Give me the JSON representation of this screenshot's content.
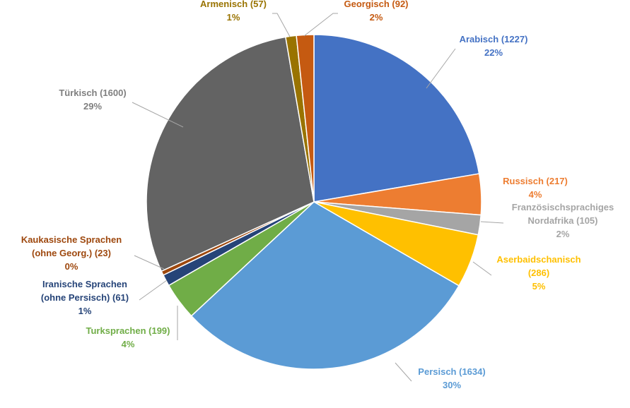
{
  "chart_data": {
    "type": "pie",
    "title": "",
    "slices": [
      {
        "label": "Arabisch",
        "value": 1227,
        "percent": "22%",
        "color": "#4472C4",
        "label_color": "#4472C4"
      },
      {
        "label": "Russisch",
        "value": 217,
        "percent": "4%",
        "color": "#ED7D31",
        "label_color": "#ED7D31"
      },
      {
        "label": "Französischsprachiges Nordafrika",
        "value": 105,
        "percent": "2%",
        "color": "#A5A5A5",
        "label_color": "#A5A5A5"
      },
      {
        "label": "Aserbaidschanisch",
        "value": 286,
        "percent": "5%",
        "color": "#FFC000",
        "label_color": "#FFC000"
      },
      {
        "label": "Persisch",
        "value": 1634,
        "percent": "30%",
        "color": "#5B9BD5",
        "label_color": "#5B9BD5"
      },
      {
        "label": "Turksprachen",
        "value": 199,
        "percent": "4%",
        "color": "#70AD47",
        "label_color": "#70AD47"
      },
      {
        "label": "Iranische Sprachen (ohne Persisch)",
        "value": 61,
        "percent": "1%",
        "color": "#264478",
        "label_color": "#264478"
      },
      {
        "label": "Kaukasische Sprachen (ohne Georg.)",
        "value": 23,
        "percent": "0%",
        "color": "#9E480E",
        "label_color": "#9E480E"
      },
      {
        "label": "Türkisch",
        "value": 1600,
        "percent": "29%",
        "color": "#636363",
        "label_color": "#7F7F7F"
      },
      {
        "label": "Armenisch",
        "value": 57,
        "percent": "1%",
        "color": "#997300",
        "label_color": "#997300"
      },
      {
        "label": "Georgisch",
        "value": 92,
        "percent": "2%",
        "color": "#C55A11",
        "label_color": "#C55A11"
      }
    ],
    "labels": [
      [
        "Arabisch (1227)",
        "22%"
      ],
      [
        "Russisch (217)",
        "4%"
      ],
      [
        "Französischsprachiges",
        "Nordafrika (105)",
        "2%"
      ],
      [
        "Aserbaidschanisch",
        "(286)",
        "5%"
      ],
      [
        "Persisch (1634)",
        "30%"
      ],
      [
        "Turksprachen (199)",
        "4%"
      ],
      [
        "Iranische Sprachen",
        "(ohne Persisch) (61)",
        "1%"
      ],
      [
        "Kaukasische Sprachen",
        "(ohne Georg.) (23)",
        "0%"
      ],
      [
        "Türkisch (1600)",
        "29%"
      ],
      [
        "Armenisch (57)",
        "1%"
      ],
      [
        "Georgisch (92)",
        "2%"
      ]
    ]
  }
}
